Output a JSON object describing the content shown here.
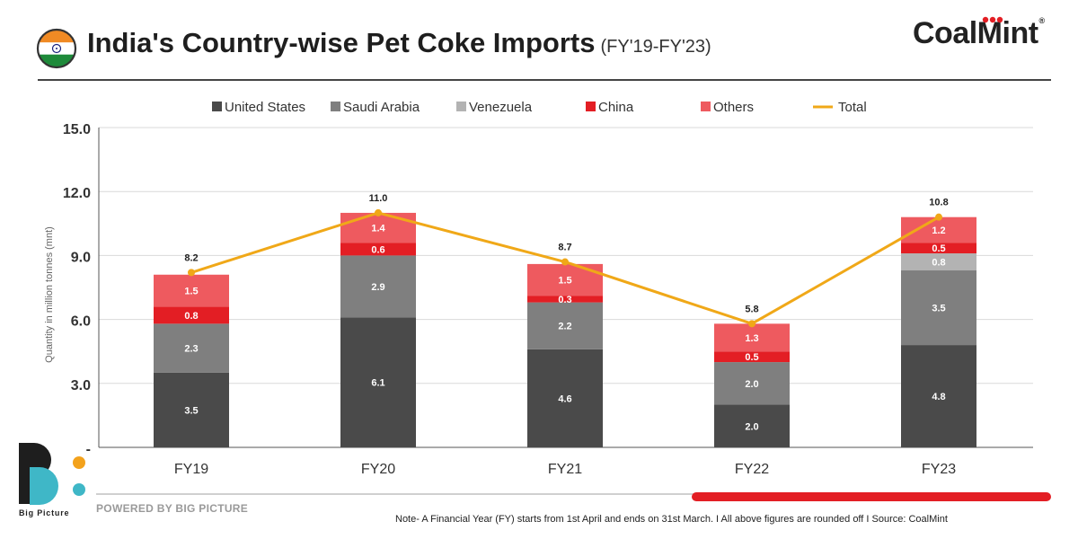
{
  "header": {
    "title": "India's Country-wise Pet Coke Imports",
    "subtitle": "(FY'19-FY'23)",
    "brand": "CoalMint",
    "brand_mark": "®"
  },
  "footer": {
    "powered_by": "POWERED BY BIG PICTURE",
    "bp_label": "Big Picture",
    "note": "Note- A Financial Year (FY) starts from 1st April and ends on 31st March.  I  All above figures are rounded off  I  Source: CoalMint"
  },
  "chart_data": {
    "type": "bar",
    "stacked": true,
    "title": "India's Country-wise Pet Coke Imports",
    "xlabel": "",
    "ylabel": "Quantity in million tonnes (mnt)",
    "ylim": [
      0,
      15
    ],
    "yticks": [
      {
        "value": 0,
        "label": "-"
      },
      {
        "value": 3,
        "label": "3.0"
      },
      {
        "value": 6,
        "label": "6.0"
      },
      {
        "value": 9,
        "label": "9.0"
      },
      {
        "value": 12,
        "label": "12.0"
      },
      {
        "value": 15,
        "label": "15.0"
      }
    ],
    "grid": true,
    "legend_position": "top",
    "categories": [
      "FY19",
      "FY20",
      "FY21",
      "FY22",
      "FY23"
    ],
    "series": [
      {
        "name": "United States",
        "color": "#4a4a4a",
        "label_color": "#ffffff",
        "values": [
          3.5,
          6.1,
          4.6,
          2.0,
          4.8
        ],
        "labels": [
          "3.5",
          "6.1",
          "4.6",
          "2.0",
          "4.8"
        ]
      },
      {
        "name": "Saudi Arabia",
        "color": "#7f7f7f",
        "label_color": "#ffffff",
        "values": [
          2.3,
          2.9,
          2.2,
          2.0,
          3.5
        ],
        "labels": [
          "2.3",
          "2.9",
          "2.2",
          "2.0",
          "3.5"
        ]
      },
      {
        "name": "Venezuela",
        "color": "#b3b3b3",
        "label_color": "#ffffff",
        "values": [
          0,
          0,
          0,
          0,
          0.8
        ],
        "labels": [
          null,
          null,
          null,
          null,
          "0.8"
        ]
      },
      {
        "name": "China",
        "color": "#e31e24",
        "label_color": "#ffffff",
        "values": [
          0.8,
          0.6,
          0.3,
          0.5,
          0.5
        ],
        "labels": [
          "0.8",
          "0.6",
          "0.3",
          "0.5",
          "0.5"
        ]
      },
      {
        "name": "Others",
        "color": "#ee5a5f",
        "label_color": "#ffffff",
        "values": [
          1.5,
          1.4,
          1.5,
          1.3,
          1.2
        ],
        "labels": [
          "1.5",
          "1.4",
          "1.5",
          "1.3",
          "1.2"
        ]
      }
    ],
    "total": {
      "name": "Total",
      "type": "line",
      "color": "#f0a818",
      "values": [
        8.2,
        11.0,
        8.7,
        5.8,
        10.8
      ],
      "labels": [
        "8.2",
        "11.0",
        "8.7",
        "5.8",
        "10.8"
      ]
    }
  }
}
